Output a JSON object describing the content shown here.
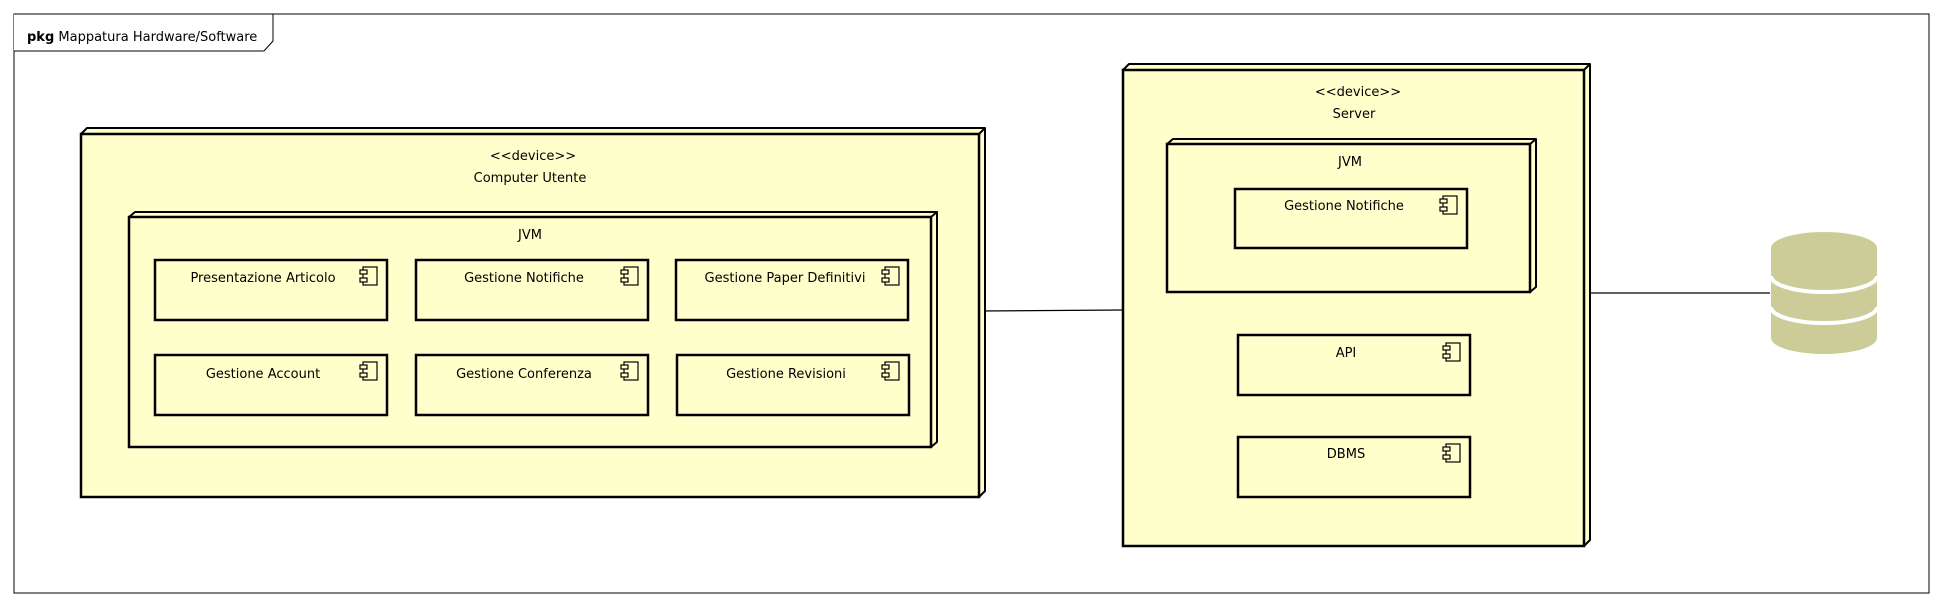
{
  "package": {
    "keyword": "pkg",
    "name": "Mappatura Hardware/Software"
  },
  "client_node": {
    "stereotype": "<<device>>",
    "name": "Computer Utente",
    "jvm": {
      "name": "JVM",
      "components": [
        "Presentazione Articolo",
        "Gestione Notifiche",
        "Gestione Paper Definitivi",
        "Gestione Account",
        "Gestione Conferenza",
        "Gestione Revisioni"
      ]
    }
  },
  "server_node": {
    "stereotype": "<<device>>",
    "name": "Server",
    "jvm": {
      "name": "JVM",
      "components": [
        "Gestione Notifiche"
      ]
    },
    "components": [
      "API",
      "DBMS"
    ]
  },
  "database": {
    "icon": "database-icon",
    "color": "#cccc99"
  },
  "colors": {
    "node_fill": "#ffffcc",
    "stroke": "#000000"
  }
}
